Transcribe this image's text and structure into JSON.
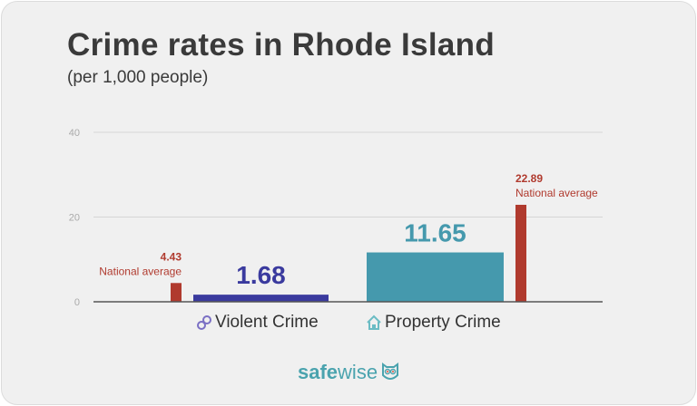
{
  "title": "Crime rates in Rhode Island",
  "subtitle": "(per 1,000 people)",
  "brand": {
    "part1": "safe",
    "part2": "wise"
  },
  "chart_data": {
    "type": "bar",
    "title": "Crime rates in Rhode Island",
    "ylim": [
      0,
      40
    ],
    "yticks": [
      0,
      20,
      40
    ],
    "grid": true,
    "categories": [
      "Violent Crime",
      "Property Crime"
    ],
    "series": [
      {
        "name": "Rhode Island",
        "values": [
          1.68,
          11.65
        ],
        "labels": [
          "1.68",
          "11.65"
        ],
        "colors": [
          "#3a3a9e",
          "#4599ad"
        ]
      },
      {
        "name": "National average",
        "values": [
          4.43,
          22.89
        ],
        "labels": [
          "4.43",
          "22.89"
        ],
        "color": "#b03a2e"
      }
    ],
    "annotation": "National average"
  }
}
